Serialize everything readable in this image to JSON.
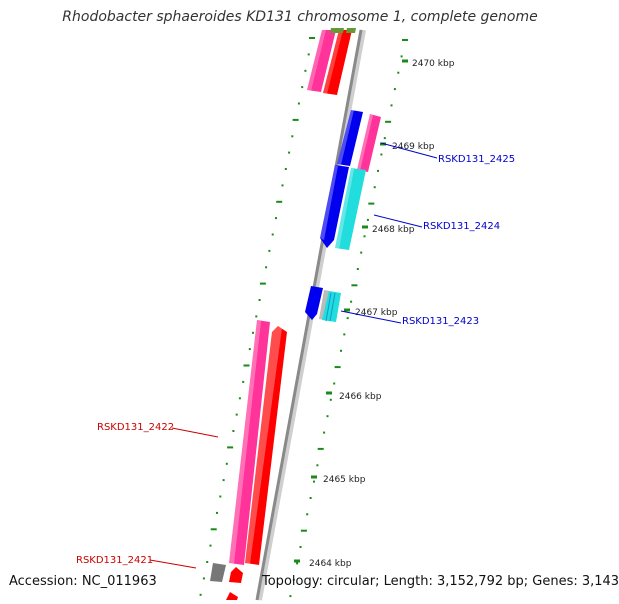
{
  "header": {
    "title": "Rhodobacter sphaeroides KD131 chromosome 1, complete genome"
  },
  "footer": {
    "accession": "Accession: NC_011963",
    "summary": "Topology: circular; Length: 3,152,792 bp; Genes: 3,143"
  },
  "colors": {
    "backbone": "#8a8a8a",
    "tick": "#1a8a1a",
    "forward_label": "#0000cc",
    "reverse_label": "#cc0000",
    "magenta": "#ff3399",
    "red": "#ff0000",
    "blue": "#0000ee",
    "cyan": "#22dddd",
    "gray": "#777777",
    "olive": "#669933"
  },
  "ruler": {
    "labels": [
      "2470 kbp",
      "2469 kbp",
      "2468 kbp",
      "2467 kbp",
      "2466 kbp",
      "2465 kbp",
      "2464 kbp"
    ]
  },
  "genes": [
    {
      "name": "RSKD131_2425",
      "strand": "forward"
    },
    {
      "name": "RSKD131_2424",
      "strand": "forward"
    },
    {
      "name": "RSKD131_2423",
      "strand": "forward"
    },
    {
      "name": "RSKD131_2422",
      "strand": "reverse"
    },
    {
      "name": "RSKD131_2421",
      "strand": "reverse"
    }
  ]
}
